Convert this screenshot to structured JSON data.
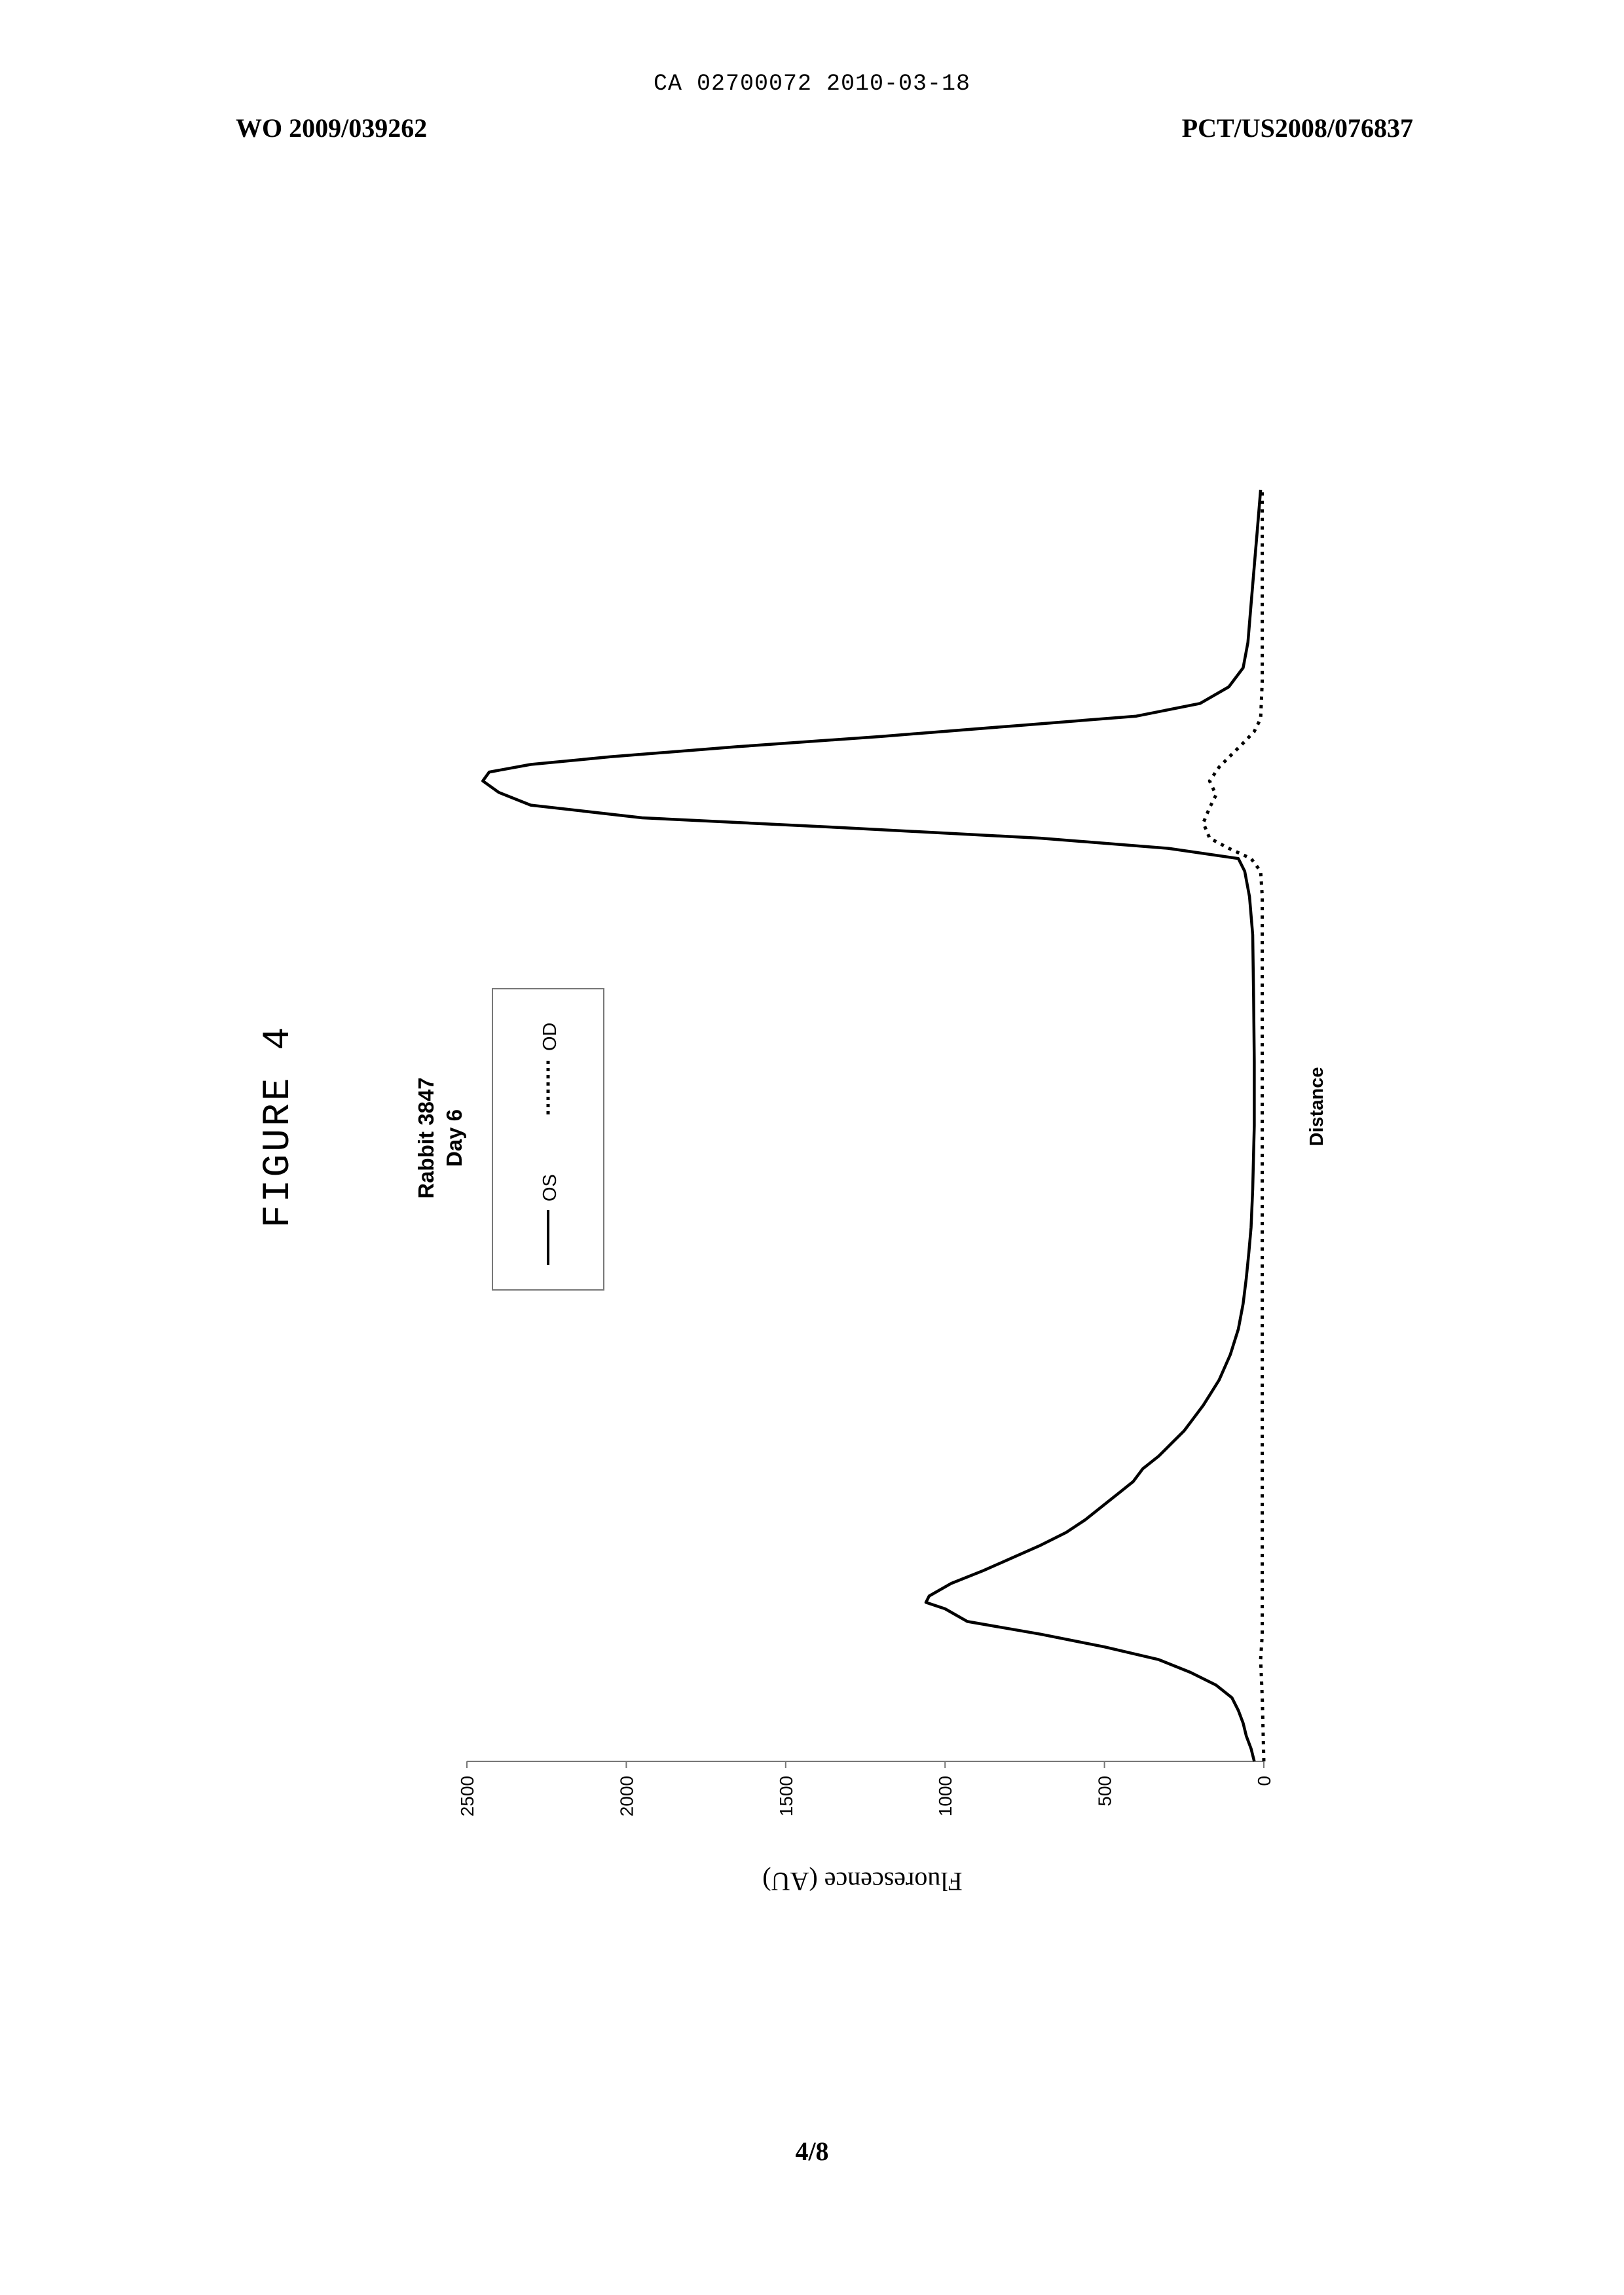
{
  "header": {
    "ca_line": "CA 02700072 2010-03-18",
    "publication_number": "WO 2009/039262",
    "application_number": "PCT/US2008/076837"
  },
  "figure_label": "FIGURE 4",
  "page_number": "4/8",
  "chart_data": {
    "type": "line",
    "orientation": "rotated 90° counter-clockwise on the page",
    "title": "Rabbit 3847",
    "subtitle": "Day 6",
    "xlabel": "Distance",
    "ylabel": "Fluorescence (AU)",
    "ylim": [
      0,
      2500
    ],
    "yticks": [
      "0",
      "500",
      "1000",
      "1500",
      "2000",
      "2500"
    ],
    "grid": false,
    "legend_placement": "top",
    "x_range": [
      0,
      100
    ],
    "series": [
      {
        "name": "OS",
        "style": "solid",
        "color": "#000000",
        "points": [
          [
            0,
            30
          ],
          [
            1,
            40
          ],
          [
            2,
            55
          ],
          [
            3,
            65
          ],
          [
            4,
            80
          ],
          [
            5,
            100
          ],
          [
            6,
            150
          ],
          [
            7,
            230
          ],
          [
            8,
            330
          ],
          [
            9,
            500
          ],
          [
            10,
            700
          ],
          [
            11,
            930
          ],
          [
            12,
            1000
          ],
          [
            12.5,
            1060
          ],
          [
            13,
            1050
          ],
          [
            14,
            980
          ],
          [
            15,
            880
          ],
          [
            16,
            790
          ],
          [
            17,
            700
          ],
          [
            18,
            620
          ],
          [
            19,
            560
          ],
          [
            20,
            510
          ],
          [
            21,
            460
          ],
          [
            22,
            410
          ],
          [
            23,
            380
          ],
          [
            24,
            330
          ],
          [
            25,
            290
          ],
          [
            26,
            250
          ],
          [
            27,
            220
          ],
          [
            28,
            190
          ],
          [
            29,
            165
          ],
          [
            30,
            140
          ],
          [
            32,
            105
          ],
          [
            34,
            80
          ],
          [
            36,
            65
          ],
          [
            38,
            55
          ],
          [
            40,
            47
          ],
          [
            42,
            40
          ],
          [
            45,
            35
          ],
          [
            50,
            30
          ],
          [
            55,
            30
          ],
          [
            60,
            32
          ],
          [
            65,
            35
          ],
          [
            68,
            45
          ],
          [
            70,
            60
          ],
          [
            71,
            80
          ],
          [
            71.8,
            300
          ],
          [
            72.6,
            700
          ],
          [
            73.4,
            1300
          ],
          [
            74.2,
            1950
          ],
          [
            75.2,
            2300
          ],
          [
            76.2,
            2400
          ],
          [
            77.1,
            2450
          ],
          [
            77.8,
            2430
          ],
          [
            78.4,
            2300
          ],
          [
            79,
            2050
          ],
          [
            79.8,
            1650
          ],
          [
            80.6,
            1200
          ],
          [
            81.4,
            800
          ],
          [
            82.2,
            400
          ],
          [
            83.2,
            200
          ],
          [
            84.5,
            110
          ],
          [
            86,
            65
          ],
          [
            88,
            50
          ],
          [
            91,
            40
          ],
          [
            94,
            30
          ],
          [
            97,
            20
          ],
          [
            100,
            10
          ]
        ]
      },
      {
        "name": "OD",
        "style": "dotted",
        "color": "#000000",
        "points": [
          [
            0,
            0
          ],
          [
            5,
            5
          ],
          [
            8,
            10
          ],
          [
            10,
            5
          ],
          [
            20,
            5
          ],
          [
            30,
            5
          ],
          [
            40,
            5
          ],
          [
            50,
            5
          ],
          [
            60,
            5
          ],
          [
            68,
            5
          ],
          [
            70,
            10
          ],
          [
            71,
            40
          ],
          [
            71.8,
            110
          ],
          [
            72.6,
            170
          ],
          [
            73.8,
            190
          ],
          [
            75,
            170
          ],
          [
            76,
            150
          ],
          [
            77.1,
            170
          ],
          [
            78.2,
            140
          ],
          [
            79.2,
            100
          ],
          [
            80.2,
            60
          ],
          [
            81,
            30
          ],
          [
            82,
            10
          ],
          [
            85,
            5
          ],
          [
            90,
            5
          ],
          [
            100,
            5
          ]
        ]
      }
    ]
  }
}
